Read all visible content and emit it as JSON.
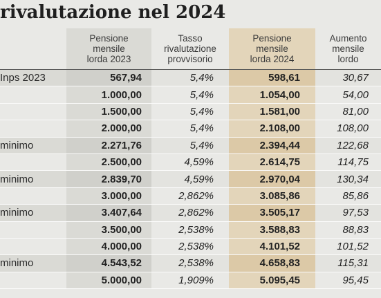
{
  "title": "rivalutazione nel 2024",
  "headers": [
    "",
    "Pensione\nmensile\nlorda 2023",
    "Tasso\nrivalutazione\nprovvisorio",
    "Pensione\nmensile\nlorda 2024",
    "Aumento\nmensile\nlordo"
  ],
  "rows": [
    {
      "label": "Inps 2023",
      "shaded": true,
      "cells": [
        "567,94",
        "5,4%",
        "598,61",
        "30,67"
      ]
    },
    {
      "label": "",
      "shaded": false,
      "cells": [
        "1.000,00",
        "5,4%",
        "1.054,00",
        "54,00"
      ]
    },
    {
      "label": "",
      "shaded": false,
      "cells": [
        "1.500,00",
        "5,4%",
        "1.581,00",
        "81,00"
      ]
    },
    {
      "label": "",
      "shaded": false,
      "cells": [
        "2.000,00",
        "5,4%",
        "2.108,00",
        "108,00"
      ]
    },
    {
      "label": "minimo",
      "shaded": true,
      "cells": [
        "2.271,76",
        "5,4%",
        "2.394,44",
        "122,68"
      ]
    },
    {
      "label": "",
      "shaded": false,
      "cells": [
        "2.500,00",
        "4,59%",
        "2.614,75",
        "114,75"
      ]
    },
    {
      "label": "minimo",
      "shaded": true,
      "cells": [
        "2.839,70",
        "4,59%",
        "2.970,04",
        "130,34"
      ]
    },
    {
      "label": "",
      "shaded": false,
      "cells": [
        "3.000,00",
        "2,862%",
        "3.085,86",
        "85,86"
      ]
    },
    {
      "label": "minimo",
      "shaded": true,
      "cells": [
        "3.407,64",
        "2,862%",
        "3.505,17",
        "97,53"
      ]
    },
    {
      "label": "",
      "shaded": false,
      "cells": [
        "3.500,00",
        "2,538%",
        "3.588,83",
        "88,83"
      ]
    },
    {
      "label": "",
      "shaded": false,
      "cells": [
        "4.000,00",
        "2,538%",
        "4.101,52",
        "101,52"
      ]
    },
    {
      "label": "minimo",
      "shaded": true,
      "cells": [
        "4.543,52",
        "2,538%",
        "4.658,83",
        "115,31"
      ]
    },
    {
      "label": "",
      "shaded": false,
      "cells": [
        "5.000,00",
        "1,909%",
        "5.095,45",
        "95,45"
      ]
    }
  ]
}
